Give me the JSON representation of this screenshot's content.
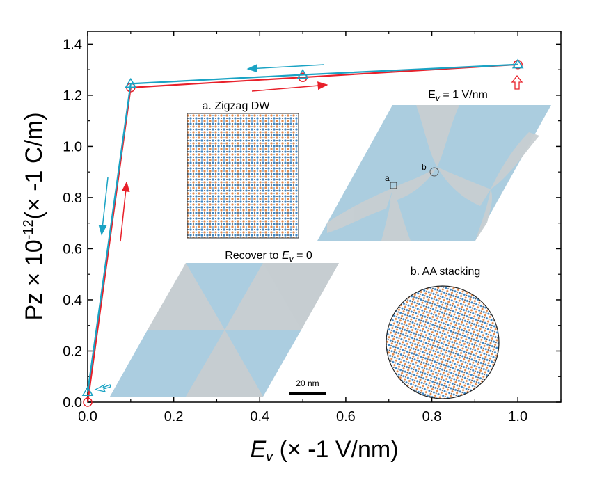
{
  "chart_data": {
    "type": "line",
    "xlabel_symbol": "E",
    "xlabel_sub": "v",
    "xlabel_unit": " (× -1 V/nm)",
    "ylabel_main": "Pz × 10",
    "ylabel_exp": "-12",
    "ylabel_unit": "(× -1 C/m)",
    "xlim": [
      0.0,
      1.1
    ],
    "ylim": [
      0.0,
      1.45
    ],
    "xticks": [
      "0.0",
      "0.2",
      "0.4",
      "0.6",
      "0.8",
      "1.0"
    ],
    "xtick_values": [
      0.0,
      0.2,
      0.4,
      0.6,
      0.8,
      1.0
    ],
    "yticks": [
      "0.0",
      "0.2",
      "0.4",
      "0.6",
      "0.8",
      "1.0",
      "1.2",
      "1.4"
    ],
    "ytick_values": [
      0.0,
      0.2,
      0.4,
      0.6,
      0.8,
      1.0,
      1.2,
      1.4
    ],
    "series": [
      {
        "name": "increasing field",
        "color": "#e8202a",
        "marker": "circle",
        "x": [
          0.0,
          0.1,
          0.5,
          1.0
        ],
        "y": [
          0.0,
          1.23,
          1.27,
          1.32
        ]
      },
      {
        "name": "decreasing field",
        "color": "#1aa3c4",
        "marker": "triangle",
        "x": [
          1.0,
          0.5,
          0.1,
          0.0
        ],
        "y": [
          1.32,
          1.28,
          1.245,
          0.04
        ]
      }
    ]
  },
  "insets": {
    "zigzag_label": "a. Zigzag DW",
    "field_label_prefix": "E",
    "field_label_sub": "v",
    "field_label_suffix": " = 1 V/nm",
    "recover_label_prefix": "Recover to ",
    "recover_label_sym": "E",
    "recover_label_sub": "v",
    "recover_label_suffix": " = 0",
    "aa_label": "b. AA stacking",
    "marker_a": "a",
    "marker_b": "b",
    "scale_bar": "20 nm"
  },
  "colors": {
    "blue_domain": "#a9cde0",
    "gray_domain": "#c9cfd3",
    "atom_blue": "#3a86c8",
    "atom_orange": "#e48a4a"
  }
}
